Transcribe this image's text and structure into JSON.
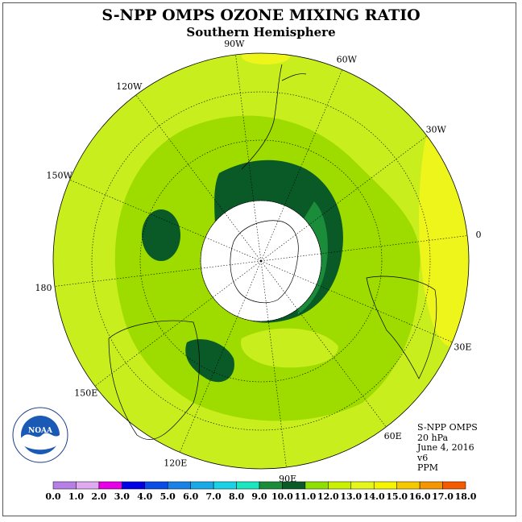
{
  "title": "S-NPP OMPS OZONE MIXING RATIO",
  "subtitle": "Southern Hemisphere",
  "longitudes": [
    {
      "label": "90W",
      "angle": 90
    },
    {
      "label": "60W",
      "angle": 60
    },
    {
      "label": "30W",
      "angle": 30
    },
    {
      "label": "0",
      "angle": 0
    },
    {
      "label": "30E",
      "angle": -30
    },
    {
      "label": "60E",
      "angle": -60
    },
    {
      "label": "90E",
      "angle": -90
    },
    {
      "label": "120E",
      "angle": -120
    },
    {
      "label": "150E",
      "angle": -150
    },
    {
      "label": "180",
      "angle": 180
    },
    {
      "label": "150W",
      "angle": 150
    },
    {
      "label": "120W",
      "angle": 120
    }
  ],
  "info": {
    "instrument": "S-NPP OMPS",
    "level": "20 hPa",
    "date": "June 4, 2016",
    "version": "v6",
    "units": "PPM"
  },
  "logo": {
    "text": "NOAA",
    "ring_text": "NATIONAL OCEANIC AND ATMOSPHERIC ADMINISTRATION · U.S. DEPARTMENT OF COMMERCE"
  },
  "colorbar": {
    "labels": [
      "0.0",
      "1.0",
      "2.0",
      "3.0",
      "4.0",
      "5.0",
      "6.0",
      "7.0",
      "8.0",
      "9.0",
      "10.0",
      "11.0",
      "12.0",
      "13.0",
      "14.0",
      "15.0",
      "16.0",
      "17.0",
      "18.0"
    ],
    "colors": [
      "#b57fe6",
      "#dfaaf0",
      "#e600e6",
      "#0000e6",
      "#0a4ce6",
      "#1a82e6",
      "#1aa8e6",
      "#1ad2e6",
      "#1ae6bf",
      "#1a8c3a",
      "#0a5a28",
      "#8fe000",
      "#c8f000",
      "#e6f51a",
      "#f5f500",
      "#f5c800",
      "#f59600",
      "#f55a00",
      "#e60000",
      "#8c5a3c"
    ]
  },
  "legend_colors": {
    "c11": "#a8e400",
    "c12": "#d2f01e",
    "c13": "#f2f51a",
    "c10": "#8cd800",
    "c9": "#1a8c3a",
    "c8": "#0a5a28"
  }
}
